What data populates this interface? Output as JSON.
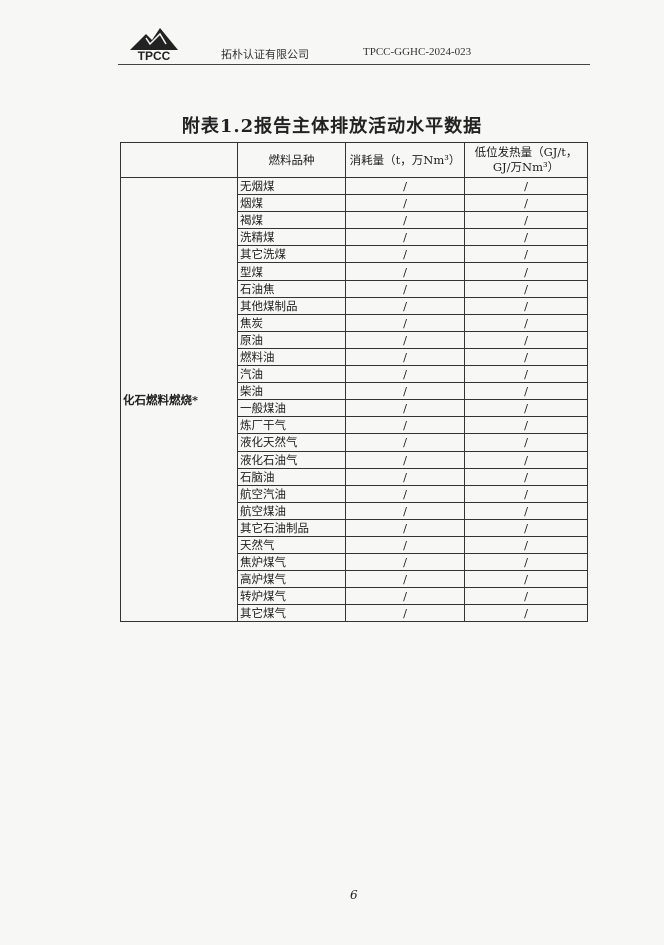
{
  "header": {
    "logo_text": "TPCC",
    "company": "拓朴认证有限公司",
    "doc_number": "TPCC-GGHC-2024-023"
  },
  "title": "附表1.2报告主体排放活动水平数据",
  "table": {
    "headers": [
      "",
      "燃料品种",
      "消耗量（t，万Nm³）",
      "低位发热量（GJ/t，GJ/万Nm³）"
    ],
    "category": "化石燃料燃烧*",
    "rows": [
      {
        "fuel": "无烟煤",
        "consumption": "/",
        "ncv": "/"
      },
      {
        "fuel": "烟煤",
        "consumption": "/",
        "ncv": "/"
      },
      {
        "fuel": "褐煤",
        "consumption": "/",
        "ncv": "/"
      },
      {
        "fuel": "洗精煤",
        "consumption": "/",
        "ncv": "/"
      },
      {
        "fuel": "其它洗煤",
        "consumption": "/",
        "ncv": "/"
      },
      {
        "fuel": "型煤",
        "consumption": "/",
        "ncv": "/"
      },
      {
        "fuel": "石油焦",
        "consumption": "/",
        "ncv": "/"
      },
      {
        "fuel": "其他煤制品",
        "consumption": "/",
        "ncv": "/"
      },
      {
        "fuel": "焦炭",
        "consumption": "/",
        "ncv": "/"
      },
      {
        "fuel": "原油",
        "consumption": "/",
        "ncv": "/"
      },
      {
        "fuel": "燃料油",
        "consumption": "/",
        "ncv": "/"
      },
      {
        "fuel": "汽油",
        "consumption": "/",
        "ncv": "/"
      },
      {
        "fuel": "柴油",
        "consumption": "/",
        "ncv": "/"
      },
      {
        "fuel": "一般煤油",
        "consumption": "/",
        "ncv": "/"
      },
      {
        "fuel": "炼厂干气",
        "consumption": "/",
        "ncv": "/"
      },
      {
        "fuel": "液化天然气",
        "consumption": "/",
        "ncv": "/"
      },
      {
        "fuel": "液化石油气",
        "consumption": "/",
        "ncv": "/"
      },
      {
        "fuel": "石脑油",
        "consumption": "/",
        "ncv": "/"
      },
      {
        "fuel": "航空汽油",
        "consumption": "/",
        "ncv": "/"
      },
      {
        "fuel": "航空煤油",
        "consumption": "/",
        "ncv": "/"
      },
      {
        "fuel": "其它石油制品",
        "consumption": "/",
        "ncv": "/"
      },
      {
        "fuel": "天然气",
        "consumption": "/",
        "ncv": "/"
      },
      {
        "fuel": "焦炉煤气",
        "consumption": "/",
        "ncv": "/"
      },
      {
        "fuel": "高炉煤气",
        "consumption": "/",
        "ncv": "/"
      },
      {
        "fuel": "转炉煤气",
        "consumption": "/",
        "ncv": "/"
      },
      {
        "fuel": "其它煤气",
        "consumption": "/",
        "ncv": "/"
      }
    ]
  },
  "page_number": "6"
}
